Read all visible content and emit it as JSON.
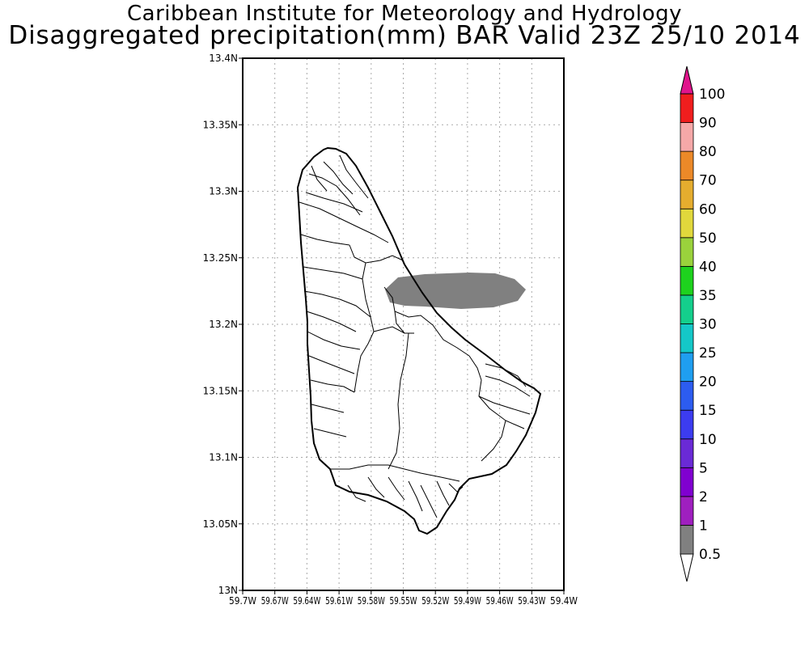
{
  "header": {
    "line1": "Caribbean Institute for Meteorology and Hydrology",
    "line2": "Disaggregated precipitation(mm) BAR Valid 23Z 25/10 2014"
  },
  "map": {
    "lon_range": [
      -59.7,
      -59.4
    ],
    "lat_range": [
      13.0,
      13.4
    ],
    "grid": true,
    "x_ticks": [
      "59.7W",
      "59.67W",
      "59.64W",
      "59.61W",
      "59.58W",
      "59.55W",
      "59.52W",
      "59.49W",
      "59.46W",
      "59.43W",
      "59.4W"
    ],
    "y_ticks": [
      "13N",
      "13.05N",
      "13.1N",
      "13.15N",
      "13.2N",
      "13.25N",
      "13.3N",
      "13.35N",
      "13.4N"
    ],
    "precip_area": {
      "category": "0.5-1",
      "color": "#808080"
    }
  },
  "colorbar": {
    "levels": [
      "0.5",
      "1",
      "2",
      "5",
      "10",
      "15",
      "20",
      "25",
      "30",
      "35",
      "40",
      "50",
      "60",
      "70",
      "80",
      "90",
      "100"
    ],
    "colors": [
      "#808080",
      "#9f1fbf",
      "#8000d0",
      "#6a2ad6",
      "#3c3cf0",
      "#2c5cf0",
      "#1f9ef0",
      "#14c8c8",
      "#14cf8c",
      "#1ed21e",
      "#9ad23c",
      "#e1d83c",
      "#e5ad2e",
      "#ec8928",
      "#f5a8a8",
      "#f01e1e",
      "#f03c4c",
      "#e0148c"
    ]
  }
}
